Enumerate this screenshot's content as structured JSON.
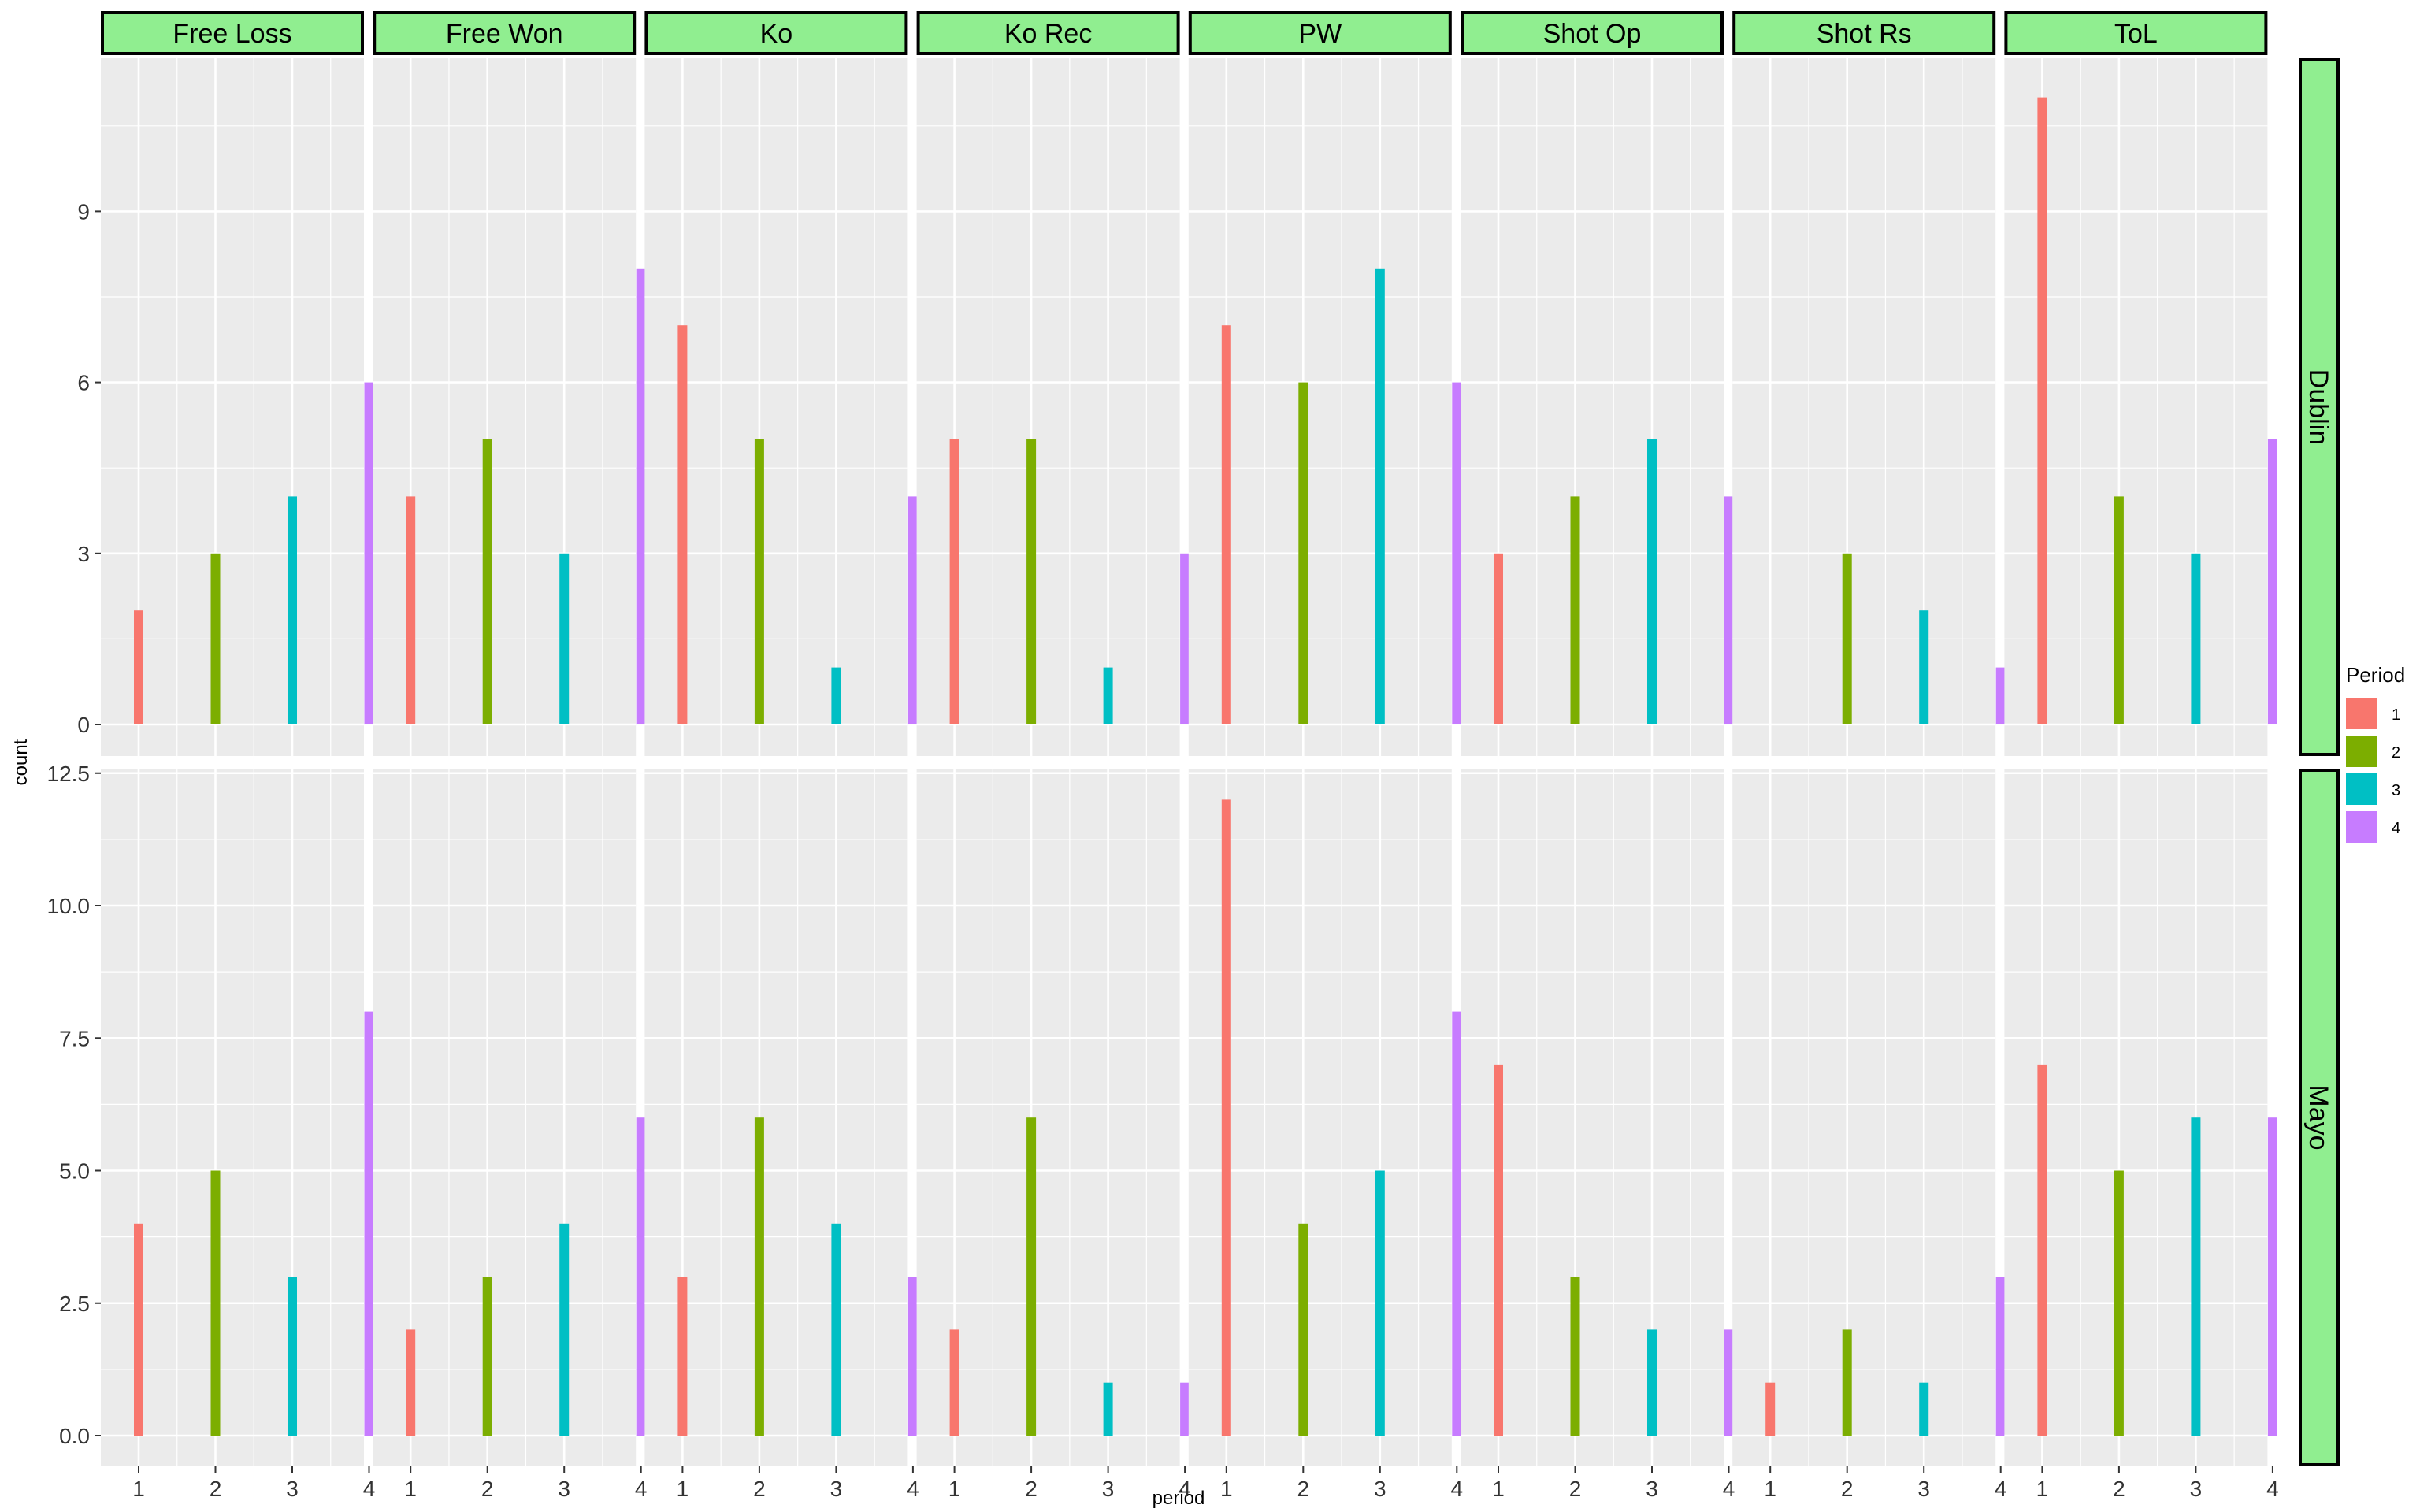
{
  "chart_data": {
    "type": "bar",
    "facet_columns": [
      "Free Loss",
      "Free Won",
      "Ko",
      "Ko Rec",
      "PW",
      "Shot Op",
      "Shot Rs",
      "ToL"
    ],
    "facet_rows": [
      "Dublin",
      "Mayo"
    ],
    "categories": [
      "1",
      "2",
      "3",
      "4"
    ],
    "colors": [
      "#F8766D",
      "#7CAE00",
      "#00BFC4",
      "#C77CFF"
    ],
    "strip_color": "#90EE90",
    "panel_bg": "#EBEBEB",
    "xlabel": "period",
    "ylabel": "count",
    "legend": {
      "title": "Period",
      "labels": [
        "1",
        "2",
        "3",
        "4"
      ],
      "position": "right"
    },
    "rows": [
      {
        "name": "Dublin",
        "ylim": [
          0,
          11
        ],
        "yticks": [
          0,
          3,
          6,
          9
        ],
        "ytick_labels": [
          "0",
          "3",
          "6",
          "9"
        ],
        "values": [
          [
            2,
            3,
            4,
            6
          ],
          [
            4,
            5,
            3,
            8
          ],
          [
            7,
            5,
            1,
            4
          ],
          [
            5,
            5,
            1,
            3
          ],
          [
            7,
            6,
            8,
            6
          ],
          [
            3,
            4,
            5,
            4
          ],
          [
            0,
            3,
            2,
            1
          ],
          [
            11,
            4,
            3,
            5
          ]
        ]
      },
      {
        "name": "Mayo",
        "ylim": [
          0,
          12
        ],
        "yticks": [
          0,
          2.5,
          5,
          7.5,
          10,
          12.5
        ],
        "ytick_labels": [
          "0.0",
          "2.5",
          "5.0",
          "7.5",
          "10.0",
          "12.5"
        ],
        "values": [
          [
            4,
            5,
            3,
            8
          ],
          [
            2,
            3,
            4,
            6
          ],
          [
            3,
            6,
            4,
            3
          ],
          [
            2,
            6,
            1,
            1
          ],
          [
            12,
            4,
            5,
            8
          ],
          [
            7,
            3,
            2,
            2
          ],
          [
            1,
            2,
            1,
            3
          ],
          [
            7,
            5,
            6,
            6
          ]
        ]
      }
    ]
  }
}
